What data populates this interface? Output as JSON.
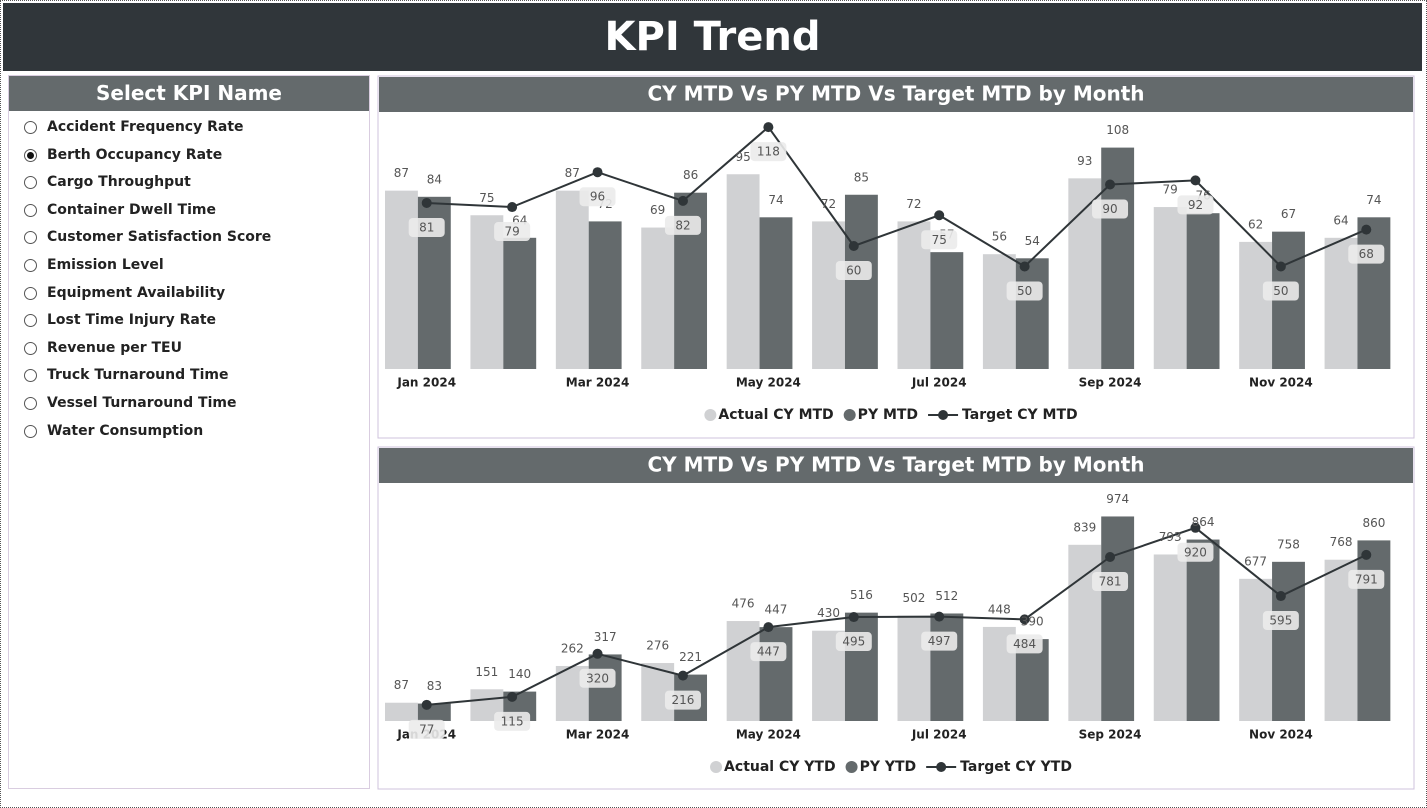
{
  "header": {
    "title": "KPI Trend"
  },
  "slicer": {
    "title": "Select KPI Name",
    "selected": 1,
    "items": [
      "Accident Frequency Rate",
      "Berth Occupancy Rate",
      "Cargo Throughput",
      "Container Dwell Time",
      "Customer Satisfaction Score",
      "Emission Level",
      "Equipment Availability",
      "Lost Time Injury Rate",
      "Revenue per TEU",
      "Truck Turnaround Time",
      "Vessel Turnaround Time",
      "Water Consumption"
    ]
  },
  "chart_data": [
    {
      "type": "combo",
      "title": "CY MTD Vs PY MTD Vs Target MTD by Month",
      "categories": [
        "Jan 2024",
        null,
        "Mar 2024",
        null,
        "May 2024",
        null,
        "Jul 2024",
        null,
        "Sep 2024",
        null,
        "Nov 2024",
        null
      ],
      "ylim": [
        0,
        120
      ],
      "series": [
        {
          "name": "Actual CY MTD",
          "type": "bar",
          "color": "#d0d1d3",
          "values": [
            87,
            75,
            87,
            69,
            95,
            72,
            72,
            56,
            93,
            79,
            62,
            64
          ]
        },
        {
          "name": "PY MTD",
          "type": "bar",
          "color": "#646a6c",
          "values": [
            84,
            64,
            72,
            86,
            74,
            85,
            57,
            54,
            108,
            76,
            67,
            74
          ]
        },
        {
          "name": "Target CY MTD",
          "type": "line",
          "color": "#2f3538",
          "values": [
            81,
            79,
            96,
            82,
            118,
            60,
            75,
            50,
            90,
            92,
            50,
            68
          ]
        }
      ]
    },
    {
      "type": "combo",
      "title": "CY MTD Vs PY MTD Vs Target MTD by Month",
      "categories": [
        "Jan 2024",
        null,
        "Mar 2024",
        null,
        "May 2024",
        null,
        "Jul 2024",
        null,
        "Sep 2024",
        null,
        "Nov 2024",
        null
      ],
      "ylim": [
        0,
        1000
      ],
      "series": [
        {
          "name": "Actual CY YTD",
          "type": "bar",
          "color": "#d0d1d3",
          "values": [
            87,
            151,
            262,
            276,
            476,
            430,
            502,
            448,
            839,
            793,
            677,
            768
          ]
        },
        {
          "name": "PY YTD",
          "type": "bar",
          "color": "#646a6c",
          "values": [
            83,
            140,
            317,
            221,
            447,
            516,
            512,
            390,
            974,
            864,
            758,
            860
          ]
        },
        {
          "name": "Target CY YTD",
          "type": "line",
          "color": "#2f3538",
          "values": [
            77,
            115,
            320,
            216,
            447,
            495,
            497,
            484,
            781,
            920,
            595,
            791
          ]
        }
      ]
    }
  ]
}
